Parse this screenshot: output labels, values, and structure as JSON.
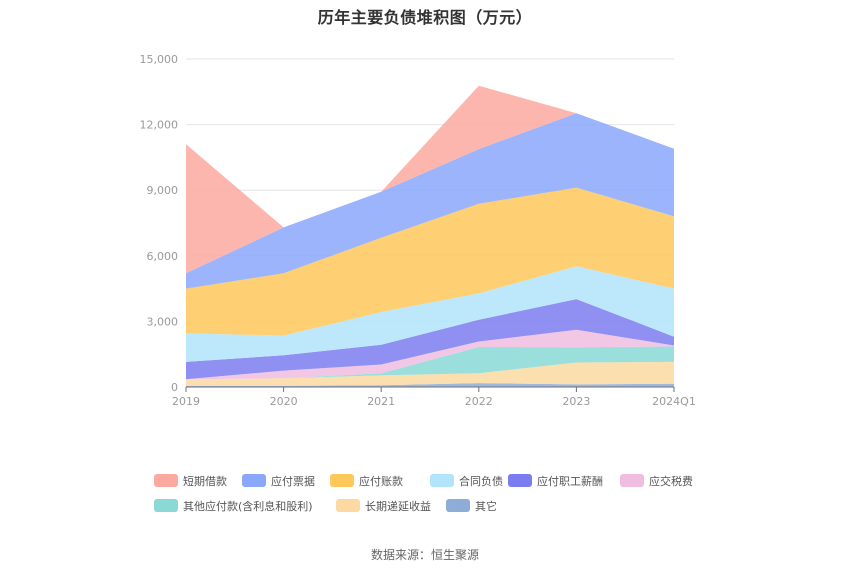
{
  "chart_data": {
    "type": "area",
    "stacked": true,
    "title": "历年主要负债堆积图（万元）",
    "categories": [
      "2019",
      "2020",
      "2021",
      "2022",
      "2023",
      "2024Q1"
    ],
    "y_ticks": [
      "0",
      "3,000",
      "6,000",
      "9,000",
      "12,000",
      "15,000"
    ],
    "ylim": [
      0,
      15000
    ],
    "grid": true,
    "legend_position": "bottom",
    "series": [
      {
        "name": "其它",
        "color": "#8eacd8",
        "values": [
          50,
          50,
          80,
          180,
          120,
          150
        ]
      },
      {
        "name": "长期递延收益",
        "color": "#fcd9a0",
        "values": [
          300,
          350,
          450,
          450,
          1000,
          1000
        ]
      },
      {
        "name": "其他应付款(含利息和股利)",
        "color": "#8ad9d6",
        "values": [
          0,
          0,
          100,
          1200,
          700,
          700
        ]
      },
      {
        "name": "应交税费",
        "color": "#f0bde0",
        "values": [
          0,
          350,
          400,
          250,
          800,
          50
        ]
      },
      {
        "name": "应付职工薪酬",
        "color": "#7b7cf0",
        "values": [
          800,
          700,
          900,
          1000,
          1400,
          400
        ]
      },
      {
        "name": "合同负债",
        "color": "#b2e4fb",
        "values": [
          1300,
          900,
          1500,
          1200,
          1500,
          2200
        ]
      },
      {
        "name": "应付账款",
        "color": "#fec85a",
        "values": [
          2050,
          2850,
          3400,
          4100,
          3600,
          3300
        ]
      },
      {
        "name": "应付票据",
        "color": "#8aa7fb",
        "values": [
          700,
          2100,
          2100,
          2500,
          3400,
          3100
        ]
      },
      {
        "name": "短期借款",
        "color": "#fca9a0",
        "values": [
          5900,
          0,
          0,
          2900,
          0,
          0
        ]
      }
    ],
    "legend": [
      {
        "name": "短期借款",
        "color": "#fca9a0"
      },
      {
        "name": "应付票据",
        "color": "#8aa7fb"
      },
      {
        "name": "应付账款",
        "color": "#fec85a"
      },
      {
        "name": "合同负债",
        "color": "#b2e4fb"
      },
      {
        "name": "应付职工薪酬",
        "color": "#7b7cf0"
      },
      {
        "name": "应交税费",
        "color": "#f0bde0"
      },
      {
        "name": "其他应付款(含利息和股利)",
        "color": "#8ad9d6"
      },
      {
        "name": "长期递延收益",
        "color": "#fcd9a0"
      },
      {
        "name": "其它",
        "color": "#8eacd8"
      }
    ]
  },
  "source_note": "数据来源：恒生聚源"
}
